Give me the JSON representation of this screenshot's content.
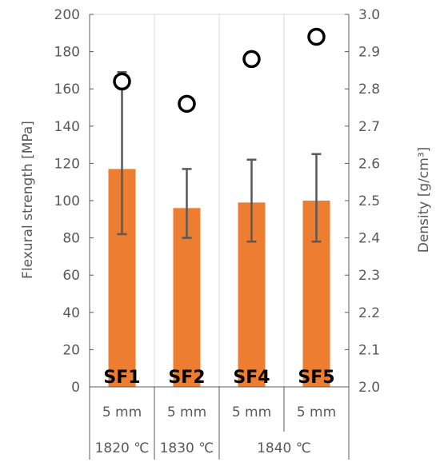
{
  "chart_data": {
    "type": "bar",
    "categories": [
      "SF1",
      "SF2",
      "SF4",
      "SF5"
    ],
    "thickness_labels": [
      "5 mm",
      "5 mm",
      "5 mm",
      "5 mm"
    ],
    "temperature_groups": [
      {
        "label": "1820 ℃",
        "span": [
          0,
          0
        ]
      },
      {
        "label": "1830 ℃",
        "span": [
          1,
          1
        ]
      },
      {
        "label": "1840 ℃",
        "span": [
          2,
          3
        ]
      }
    ],
    "series": [
      {
        "kind": "bar",
        "axis": "left",
        "values": [
          117,
          96,
          99,
          100
        ],
        "error_low": [
          82,
          80,
          78,
          78
        ],
        "error_high": [
          169,
          117,
          122,
          125
        ],
        "color": "#ED7D31"
      },
      {
        "kind": "scatter",
        "axis": "right",
        "values": [
          2.82,
          2.76,
          2.88,
          2.94
        ],
        "marker": "open-circle",
        "color": "#000000"
      }
    ],
    "ylabel": "Flexural strength [MPa]",
    "ylabel_right": "Density [g/cm³]",
    "ylim": [
      0,
      200
    ],
    "ylim_right": [
      2.0,
      3.0
    ],
    "yticks": [
      "0",
      "20",
      "40",
      "60",
      "80",
      "100",
      "120",
      "140",
      "160",
      "180",
      "200"
    ],
    "yticks_right": [
      "2.0",
      "2.1",
      "2.2",
      "2.3",
      "2.4",
      "2.5",
      "2.6",
      "2.7",
      "2.8",
      "2.9",
      "3.0"
    ],
    "grid": true,
    "errorbar_color": "#595959"
  }
}
